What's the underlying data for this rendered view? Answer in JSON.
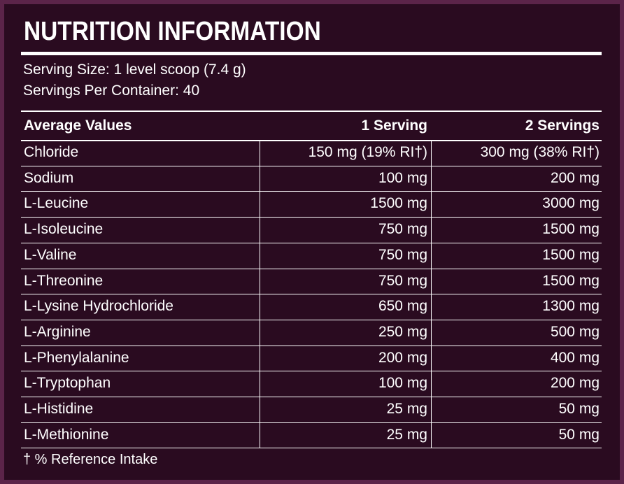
{
  "header": {
    "title": "NUTRITION INFORMATION",
    "serving_size": "Serving Size: 1 level scoop (7.4 g)",
    "servings_per_container": "Servings Per Container: 40"
  },
  "table": {
    "columns": [
      "Average Values",
      "1 Serving",
      "2 Servings"
    ],
    "rows": [
      [
        "Chloride",
        "150 mg (19% RI†)",
        "300 mg (38% RI†)"
      ],
      [
        "Sodium",
        "100 mg",
        "200 mg"
      ],
      [
        "L-Leucine",
        "1500 mg",
        "3000 mg"
      ],
      [
        "L-Isoleucine",
        "750 mg",
        "1500 mg"
      ],
      [
        "L-Valine",
        "750 mg",
        "1500 mg"
      ],
      [
        "L-Threonine",
        "750 mg",
        "1500 mg"
      ],
      [
        "L-Lysine Hydrochloride",
        "650 mg",
        "1300 mg"
      ],
      [
        "L-Arginine",
        "250 mg",
        "500 mg"
      ],
      [
        "L-Phenylalanine",
        "200 mg",
        "400 mg"
      ],
      [
        "L-Tryptophan",
        "100 mg",
        "200 mg"
      ],
      [
        "L-Histidine",
        "25 mg",
        "50 mg"
      ],
      [
        "L-Methionine",
        "25 mg",
        "50 mg"
      ]
    ]
  },
  "footnote": "† % Reference Intake"
}
